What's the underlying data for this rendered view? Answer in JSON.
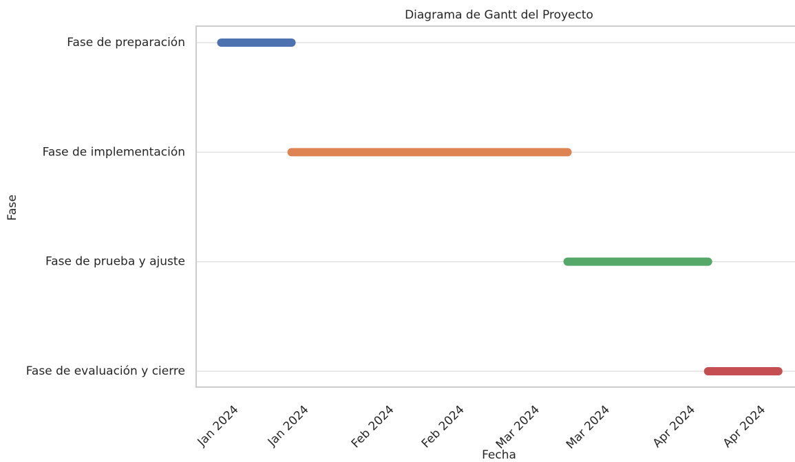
{
  "chart_data": {
    "type": "gantt",
    "title": "Diagrama de Gantt del Proyecto",
    "x_label": "Fecha",
    "y_label": "Fase",
    "tasks": [
      {
        "name": "Fase de preparación",
        "start": "2024-01-01",
        "end": "2024-01-15",
        "color": "#4c72b0"
      },
      {
        "name": "Fase de implementación",
        "start": "2024-01-15",
        "end": "2024-03-10",
        "color": "#dd8452"
      },
      {
        "name": "Fase de prueba y ajuste",
        "start": "2024-03-10",
        "end": "2024-04-07",
        "color": "#55a868"
      },
      {
        "name": "Fase de evaluación y cierre",
        "start": "2024-04-07",
        "end": "2024-04-21",
        "color": "#c44e52"
      }
    ],
    "xlim": [
      "2023-12-27",
      "2024-04-25"
    ],
    "xticks": [
      {
        "value": "2024-01-01",
        "label": "Jan 2024"
      },
      {
        "value": "2024-01-15",
        "label": "Jan 2024"
      },
      {
        "value": "2024-02-01",
        "label": "Feb 2024"
      },
      {
        "value": "2024-02-15",
        "label": "Feb 2024"
      },
      {
        "value": "2024-03-01",
        "label": "Mar 2024"
      },
      {
        "value": "2024-03-15",
        "label": "Mar 2024"
      },
      {
        "value": "2024-04-01",
        "label": "Apr 2024"
      },
      {
        "value": "2024-04-15",
        "label": "Apr 2024"
      }
    ],
    "grid": true
  }
}
